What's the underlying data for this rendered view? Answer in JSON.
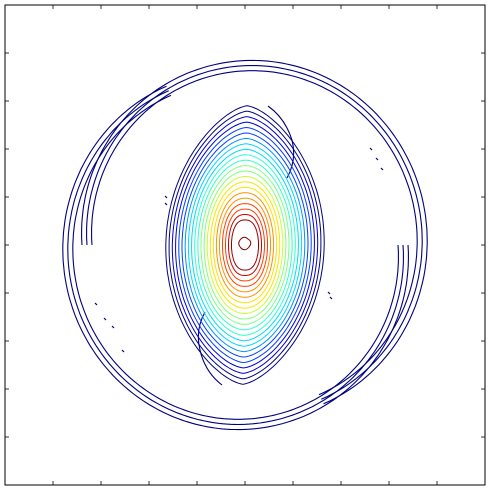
{
  "chart_data": {
    "type": "contour",
    "title": "",
    "xlabel": "",
    "ylabel": "",
    "xlim": [
      -1,
      1
    ],
    "ylim": [
      -1,
      1
    ],
    "grid": false,
    "legend": "none",
    "ticks": {
      "x_count": 10,
      "y_count": 10,
      "tick_labels_shown": false
    },
    "core": {
      "shape": "lens",
      "center": [
        0.0,
        0.0
      ],
      "half_width": 0.33,
      "half_height": 0.58,
      "levels": 22,
      "colormap": [
        "#00007f",
        "#0000d0",
        "#0040ff",
        "#0090ff",
        "#00d8ff",
        "#30ffc8",
        "#80ff80",
        "#c8ff30",
        "#ffe000",
        "#ff9000",
        "#ff4000",
        "#d00000",
        "#9a0000"
      ]
    },
    "spiral_arms": {
      "count": 2,
      "color": "#00007f",
      "description_levels": 3
    },
    "colors": {
      "frame": "#000000",
      "background": "#ffffff"
    }
  }
}
